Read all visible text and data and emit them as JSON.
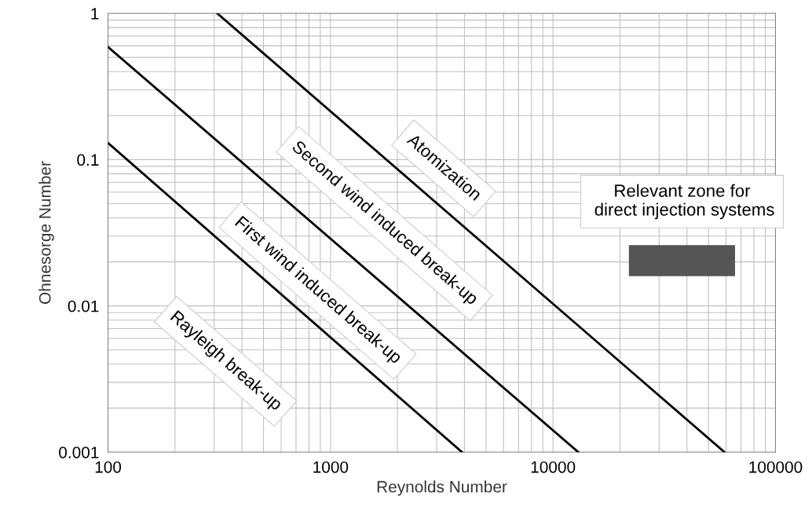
{
  "chart_data": {
    "type": "line",
    "xlabel": "Reynolds Number",
    "ylabel": "Ohnesorge Number",
    "log": "xy",
    "grid": true,
    "legend": false,
    "marker": "none",
    "line_style": "solid",
    "xlim": [
      100,
      100000
    ],
    "ylim": [
      0.001,
      1
    ],
    "xticks": [
      100,
      1000,
      10000,
      100000
    ],
    "yticks": [
      0.001,
      0.01,
      0.1,
      1
    ],
    "series": [
      {
        "color": "#000000",
        "x": [
          100,
          3900
        ],
        "values": [
          0.13,
          0.001
        ]
      },
      {
        "color": "#000000",
        "x": [
          100,
          13000
        ],
        "values": [
          0.59,
          0.001
        ]
      },
      {
        "color": "#000000",
        "x": [
          310,
          59000
        ],
        "values": [
          1,
          0.001
        ]
      },
      {
        "type": "bar",
        "color": "#555555",
        "x": [
          38000
        ],
        "base": [
          0.016
        ],
        "values": [
          0.01
        ]
      }
    ],
    "annotations": [
      "Rayleigh break-up",
      "First wind induced break-up",
      "Second wind induced break-up",
      "Atomization",
      "Relevant zone for\n direct injection systems"
    ]
  }
}
